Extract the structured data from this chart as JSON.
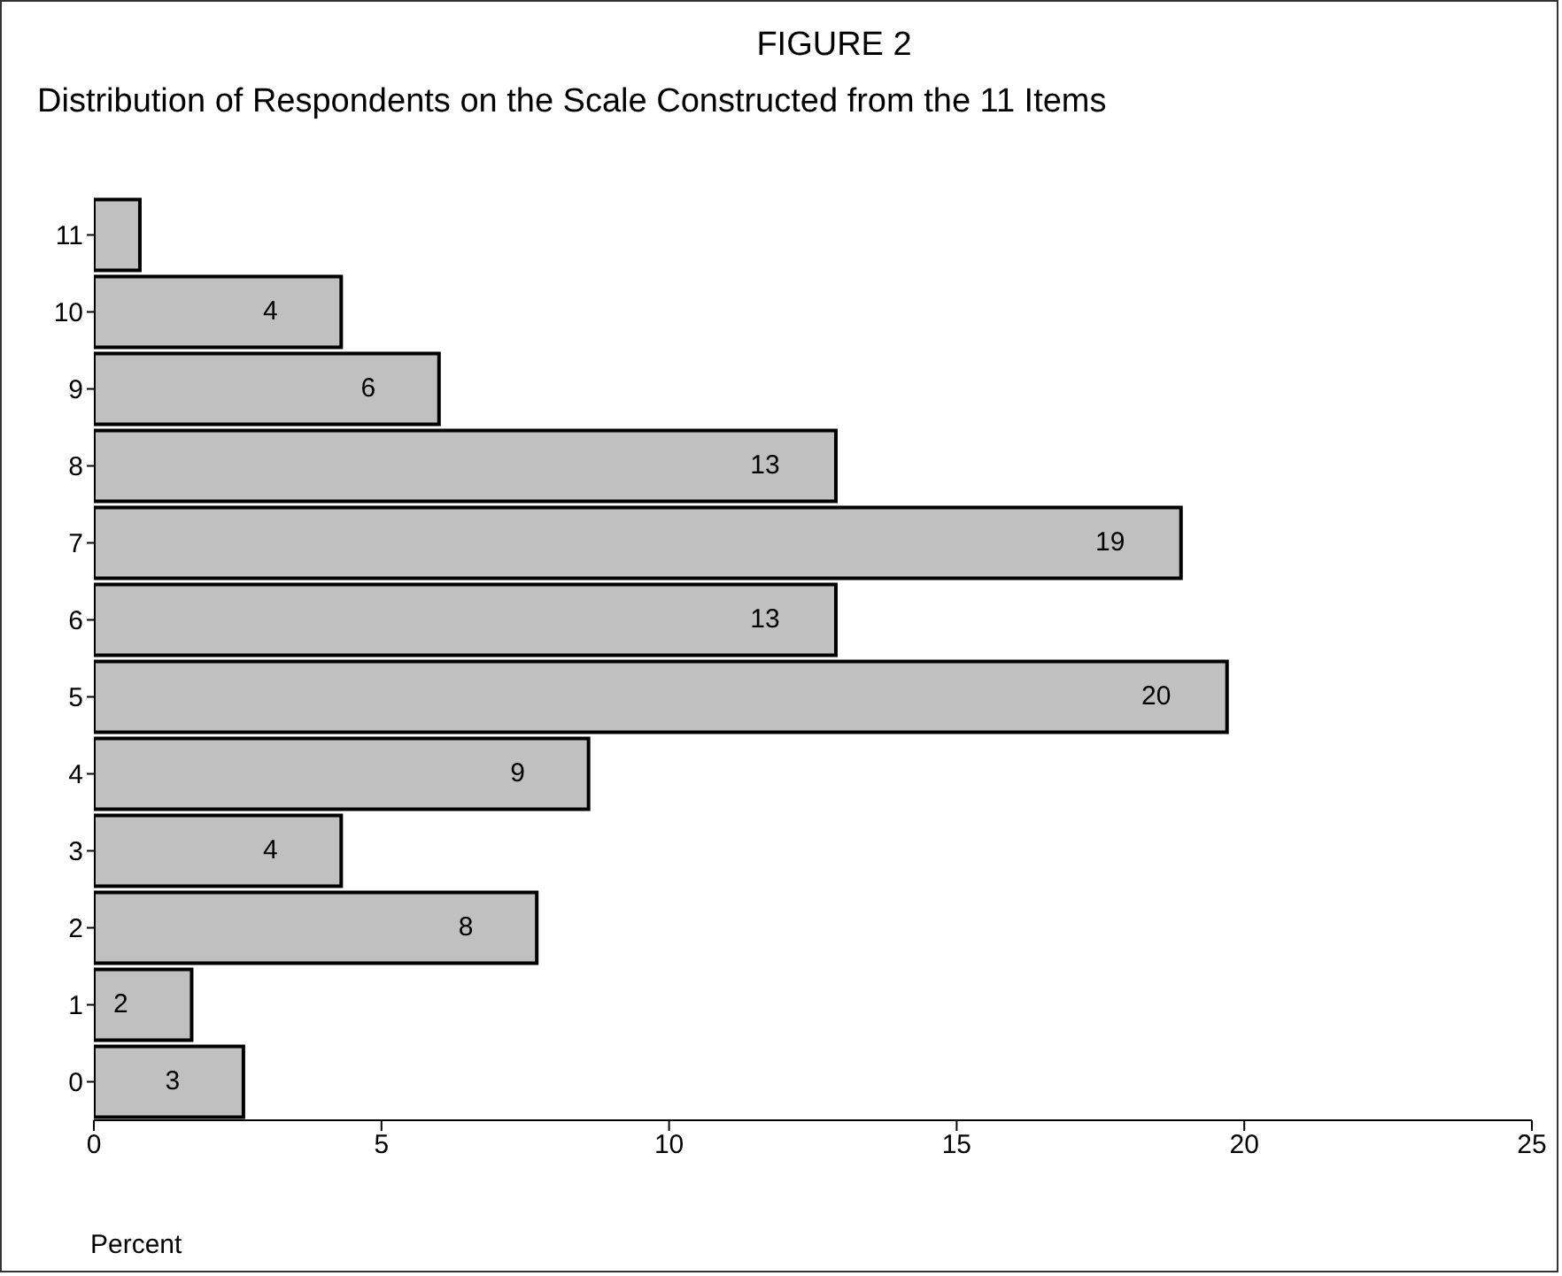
{
  "chart_data": {
    "type": "bar",
    "orientation": "horizontal",
    "title": "FIGURE 2",
    "subtitle": "Distribution of Respondents on the Scale Constructed from the 11 Items",
    "xlabel": "Percent",
    "categories": [
      "11",
      "10",
      "9",
      "8",
      "7",
      "6",
      "5",
      "4",
      "3",
      "2",
      "1",
      "0"
    ],
    "values": [
      0.8,
      4.3,
      6.0,
      12.9,
      18.9,
      12.9,
      19.7,
      8.6,
      4.3,
      7.7,
      1.7,
      2.6
    ],
    "value_labels": [
      null,
      "4",
      "6",
      "13",
      "19",
      "13",
      "20",
      "9",
      "4",
      "8",
      "2",
      "3"
    ],
    "color": "#c0c0c0",
    "xlim": [
      0,
      25
    ],
    "xticks": [
      0,
      5,
      10,
      15,
      20,
      25
    ],
    "grid": false,
    "legend": false
  }
}
